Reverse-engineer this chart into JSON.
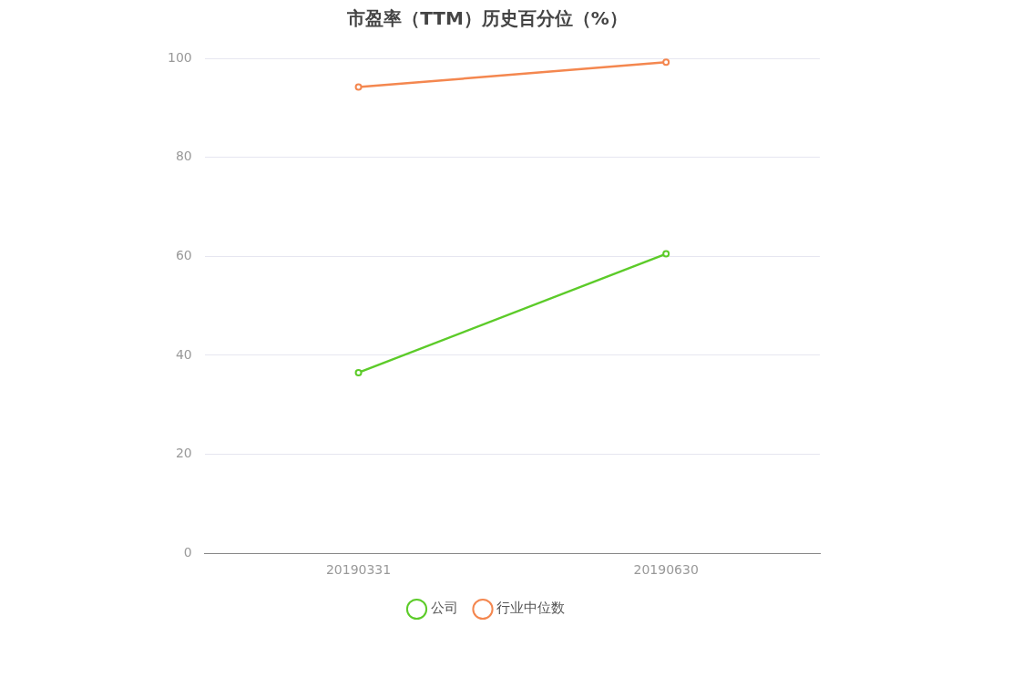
{
  "chart_data": {
    "type": "line",
    "title": "市盈率（TTM）历史百分位（%）",
    "categories": [
      "20190331",
      "20190630"
    ],
    "series": [
      {
        "name": "公司",
        "color": "#5ccb29",
        "values": [
          36.5,
          60.5
        ]
      },
      {
        "name": "行业中位数",
        "color": "#f4874f",
        "values": [
          94.2,
          99.2
        ]
      }
    ],
    "ylim": [
      0,
      100
    ],
    "yticks": [
      0,
      20,
      40,
      60,
      80,
      100
    ],
    "grid": "y",
    "legend": "bottom",
    "marker": "circle",
    "line_style": "solid"
  }
}
